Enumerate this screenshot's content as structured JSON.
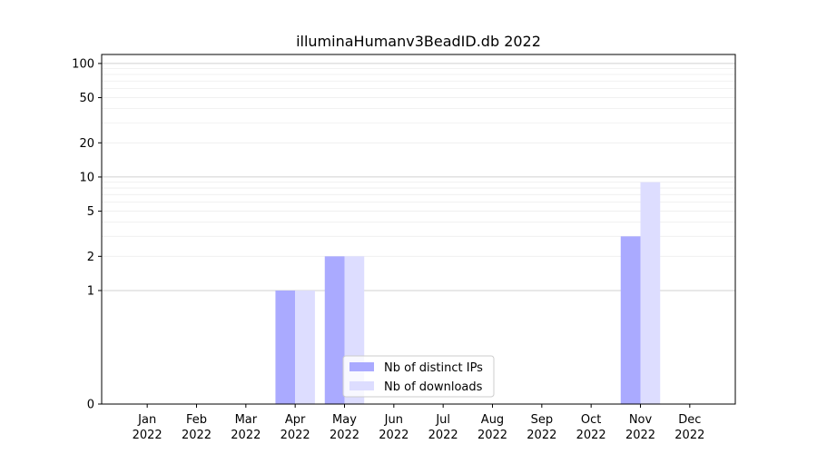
{
  "chart_data": {
    "type": "bar",
    "title": "illuminaHumanv3BeadID.db 2022",
    "xlabel": "",
    "ylabel": "",
    "y_scale": "symlog",
    "ylim": [
      0,
      120
    ],
    "y_ticks": [
      0,
      1,
      2,
      5,
      10,
      20,
      50,
      100
    ],
    "grid": "horizontal",
    "legend_position": "bottom-center",
    "categories": [
      {
        "month": "Jan",
        "year": "2022"
      },
      {
        "month": "Feb",
        "year": "2022"
      },
      {
        "month": "Mar",
        "year": "2022"
      },
      {
        "month": "Apr",
        "year": "2022"
      },
      {
        "month": "May",
        "year": "2022"
      },
      {
        "month": "Jun",
        "year": "2022"
      },
      {
        "month": "Jul",
        "year": "2022"
      },
      {
        "month": "Aug",
        "year": "2022"
      },
      {
        "month": "Sep",
        "year": "2022"
      },
      {
        "month": "Oct",
        "year": "2022"
      },
      {
        "month": "Nov",
        "year": "2022"
      },
      {
        "month": "Dec",
        "year": "2022"
      }
    ],
    "series": [
      {
        "name": "Nb of distinct IPs",
        "color": "#aaaaff",
        "values": [
          0,
          0,
          0,
          1,
          2,
          0,
          0,
          0,
          0,
          0,
          3,
          0
        ]
      },
      {
        "name": "Nb of downloads",
        "color": "#ddddff",
        "values": [
          0,
          0,
          0,
          1,
          2,
          0,
          0,
          0,
          0,
          0,
          9,
          0
        ]
      }
    ]
  }
}
